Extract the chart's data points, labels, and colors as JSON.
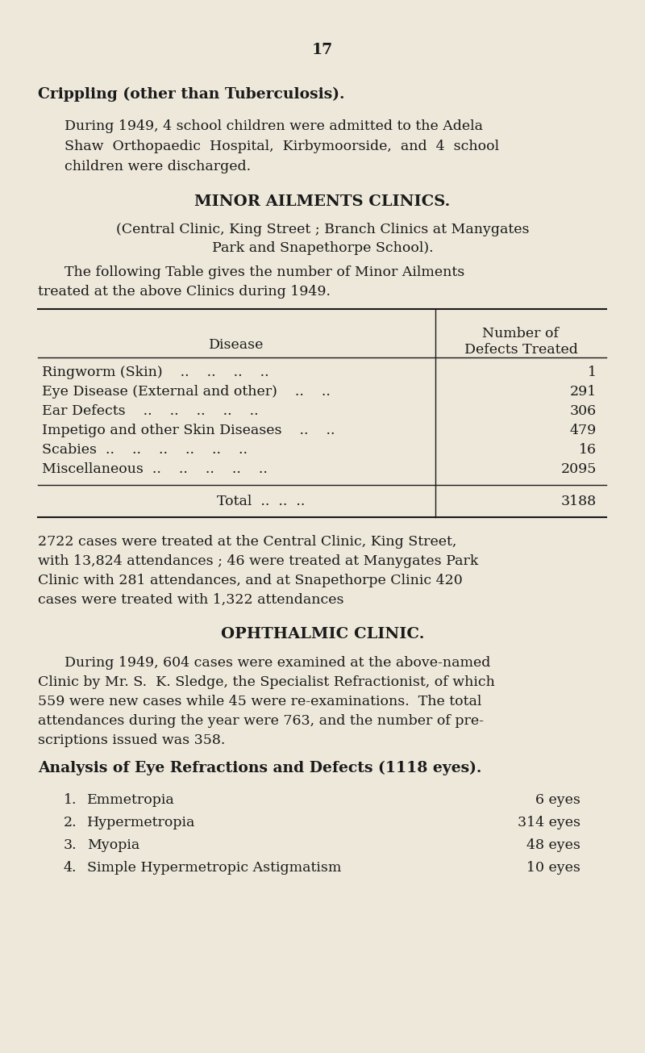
{
  "bg_color": "#ede8da",
  "text_color": "#1a1a1a",
  "page_number": "17",
  "section1_title": "Crippling (other than Tuberculosis).",
  "para1_line1": "During 1949, 4 school children were admitted to the Adela",
  "para1_line2": "Shaw  Orthopaedic  Hospital,  Kirbymoorside,  and  4  school",
  "para1_line3": "children were discharged.",
  "section2_title": "MINOR AILMENTS CLINICS.",
  "section2_sub1": "(Central Clinic, King Street ; Branch Clinics at Manygates",
  "section2_sub2": "Park and Snapethorpe School).",
  "section2_body1": "The following Table gives the number of Minor Ailments",
  "section2_body2": "treated at the above Clinics during 1949.",
  "table_col1_header": "Disease",
  "table_col2_line1": "Number of",
  "table_col2_line2": "Defects Treated",
  "table_diseases": [
    "Ringworm (Skin)    ..    ..    ..    ..",
    "Eye Disease (External and other)    ..    ..",
    "Ear Defects    ..    ..    ..    ..    ..",
    "Impetigo and other Skin Diseases    ..    ..",
    "Scabies  ..    ..    ..    ..    ..    ..",
    "Miscellaneous  ..    ..    ..    ..    .."
  ],
  "table_values": [
    "1",
    "291",
    "306",
    "479",
    "16",
    "2095"
  ],
  "table_total_label": "Total  ..  ..  ..",
  "table_total_value": "3188",
  "after_table1": "2722 cases were treated at the Central Clinic, King Street,",
  "after_table2": "with 13,824 attendances ; 46 were treated at Manygates Park",
  "after_table3": "Clinic with 281 attendances, and at Snapethorpe Clinic 420",
  "after_table4": "cases were treated with 1,322 attendances",
  "section3_title": "OPHTHALMIC CLINIC.",
  "sect3_body": [
    "During 1949, 604 cases were examined at the above-named",
    "Clinic by Mr. S.  K. Sledge, the Specialist Refractionist, of which",
    "559 were new cases while 45 were re-examinations.  The total",
    "attendances during the year were 763, and the number of pre­",
    "scriptions issued was 358."
  ],
  "section4_title": "Analysis of Eye Refractions and Defects (1118 eyes).",
  "eye_nums": [
    "1.",
    "2.",
    "3.",
    "4."
  ],
  "eye_names": [
    "Emmetropia",
    "Hypermetropia",
    "Myopia",
    "Simple Hypermetropic Astigmatism"
  ],
  "eye_dots": [
    "..",
    "..",
    "..",
    ".."
  ],
  "eye_values": [
    "6 eyes",
    "314 eyes",
    "48 eyes",
    "10 eyes"
  ]
}
